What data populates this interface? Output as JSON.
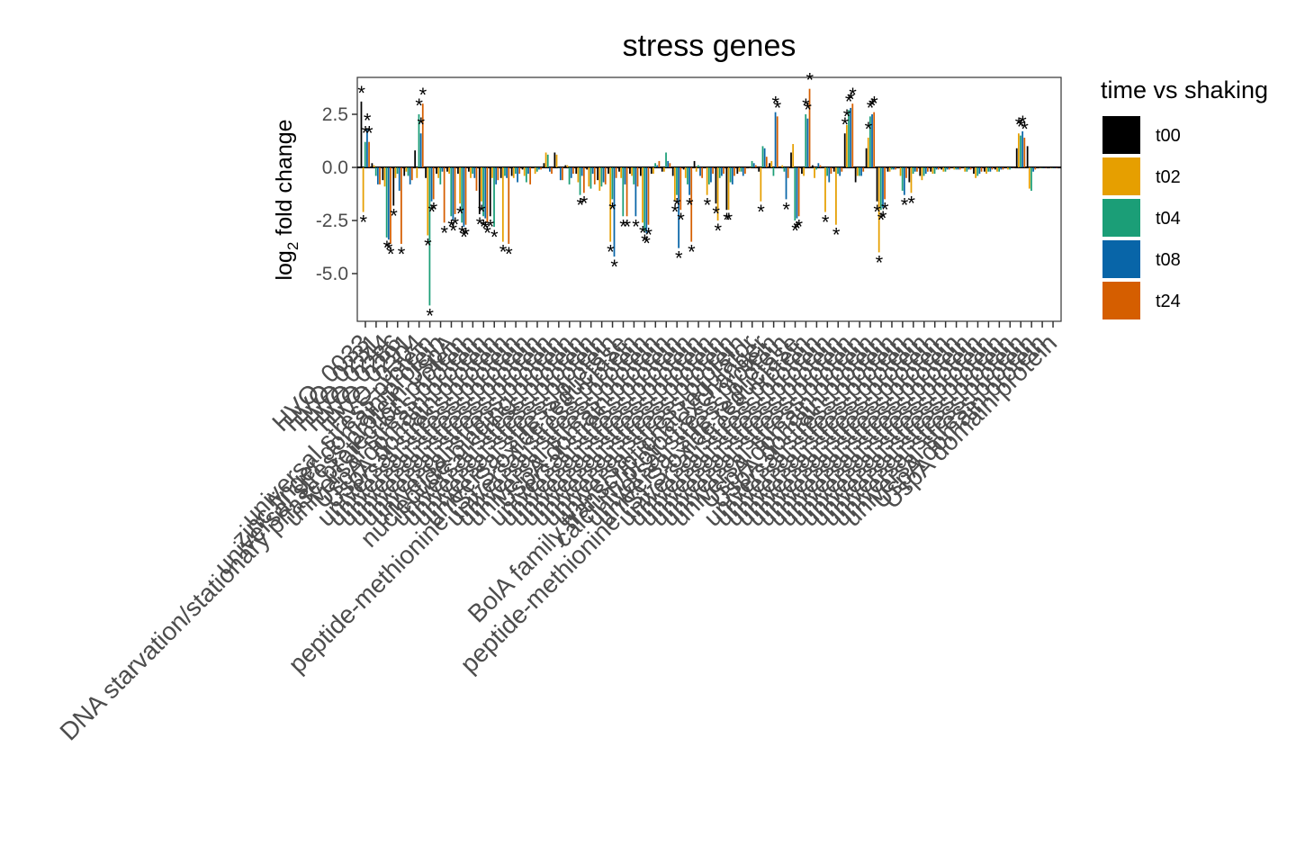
{
  "chart_data": {
    "type": "bar",
    "title": "stress genes",
    "ylabel": "log2 fold change",
    "ylim": [
      -7.3,
      4.3
    ],
    "yticks": [
      2.5,
      0.0,
      -2.5,
      -5.0
    ],
    "ytick_labels": [
      "2.5",
      "0.0",
      "-2.5",
      "-5.0"
    ],
    "legend_title": "time vs shaking",
    "legend_position": "right",
    "grid": false,
    "categories": [
      "HVO_0033",
      "HVO_0231",
      "HVO_0244",
      "HVO_0286",
      "HVO_0291",
      "HVO_0304",
      "universal stress protein",
      "zinc finger domain protein",
      "universal stress protein UspA",
      "DNA starvation/stationary phase protection protein",
      "universal stress protein",
      "UspA domain protein",
      "UspA domain protein",
      "universal stress protein",
      "universal stress protein",
      "universal stress protein",
      "universal stress protein",
      "universal stress protein",
      "universal stress protein",
      "nucleotide-binding protein",
      "universal stress protein",
      "universal stress protein",
      "universal stress protein",
      "universal stress protein",
      "peptide-methionine (S)-S-oxide reductase",
      "universal stress protein",
      "universal stress protein",
      "universal stress protein",
      "UspA domain protein",
      "universal stress protein",
      "universal stress protein",
      "universal stress protein",
      "universal stress protein",
      "universal stress protein",
      "universal stress protein",
      "universal stress protein",
      "BolA family transcriptional regulator",
      "calcium/proton exchanger",
      "universal stress protein",
      "universal stress protein",
      "peptide-methionine (S)-S-oxide reductase",
      "universal stress protein",
      "universal stress protein",
      "universal stress protein",
      "universal stress protein",
      "universal stress protein",
      "universal stress protein",
      "UspA domain protein",
      "UspA domain protein",
      "universal stress protein",
      "universal stress protein",
      "universal stress protein",
      "universal stress protein",
      "universal stress protein",
      "universal stress protein",
      "universal stress protein",
      "universal stress protein",
      "universal stress protein",
      "universal stress protein",
      "universal stress protein",
      "universal stress protein",
      "universal stress protein",
      "universal stress protein",
      "UspA domain protein",
      "UspA domain protein"
    ],
    "series": [
      {
        "name": "t00",
        "color": "#000000",
        "values": [
          3.1,
          0.2,
          -0.6,
          -1.8,
          -0.4,
          0.8,
          -0.5,
          -0.3,
          -0.2,
          -0.3,
          -0.2,
          -2.2,
          -2.3,
          -0.5,
          -0.4,
          -0.1,
          0.0,
          0.2,
          0.7,
          0.1,
          -0.3,
          -0.1,
          -0.6,
          -0.3,
          -0.2,
          -0.3,
          -0.4,
          -0.3,
          -0.2,
          -0.4,
          -0.1,
          0.3,
          0.0,
          -1.7,
          -2.0,
          -0.3,
          0.0,
          -0.2,
          0.2,
          0.0,
          0.7,
          -0.3,
          0.1,
          0.0,
          -0.2,
          1.6,
          -0.7,
          0.9,
          -1.6,
          -0.2,
          0.0,
          -0.7,
          -0.4,
          -0.2,
          -0.1,
          0.0,
          0.0,
          -0.3,
          -0.2,
          -0.1,
          0.0,
          0.9,
          1.0,
          0.0,
          0.0
        ]
      },
      {
        "name": "t02",
        "color": "#E69F00",
        "values": [
          -2.1,
          0.1,
          -0.9,
          -0.5,
          -0.2,
          -0.5,
          -3.2,
          -0.5,
          -0.3,
          -1.7,
          -0.5,
          -1.6,
          -0.5,
          -3.5,
          -0.5,
          -0.4,
          -0.3,
          0.7,
          0.6,
          0.1,
          -0.7,
          -0.9,
          -1.1,
          -3.5,
          -0.5,
          -0.4,
          -2.6,
          -0.3,
          -0.2,
          -1.6,
          -0.5,
          -0.2,
          -1.3,
          -2.5,
          -2.0,
          -0.2,
          0.0,
          -1.6,
          0.3,
          0.1,
          1.1,
          -0.4,
          -0.5,
          -2.1,
          -2.7,
          2.0,
          -0.4,
          1.4,
          -4.0,
          -0.2,
          -0.4,
          -1.2,
          -0.6,
          -0.3,
          -0.2,
          -0.1,
          -0.2,
          -0.5,
          -0.3,
          -0.2,
          -0.1,
          1.6,
          -1.0,
          0.0,
          0.0
        ]
      },
      {
        "name": "t04",
        "color": "#1B9E77",
        "values": [
          1.2,
          -0.4,
          -3.3,
          -0.3,
          -0.4,
          2.5,
          -6.5,
          -0.8,
          -2.3,
          -2.6,
          -0.3,
          -2.3,
          -2.8,
          -0.4,
          -0.3,
          -0.7,
          -0.2,
          0.6,
          0.0,
          -0.8,
          -1.3,
          -1.0,
          -0.9,
          -1.5,
          -2.3,
          -0.8,
          -3.0,
          0.2,
          0.7,
          -1.3,
          -0.8,
          0.1,
          -0.8,
          -0.5,
          -0.7,
          -0.2,
          0.3,
          1.0,
          -0.4,
          -0.2,
          -2.5,
          2.5,
          -0.1,
          -0.4,
          -0.3,
          2.7,
          -0.4,
          2.4,
          -2.0,
          -0.1,
          -1.1,
          -0.3,
          -0.4,
          -0.3,
          -0.2,
          -0.1,
          -0.2,
          -0.4,
          -0.2,
          -0.2,
          -0.1,
          1.5,
          -1.1,
          0.0,
          0.0
        ]
      },
      {
        "name": "t08",
        "color": "#0865A8",
        "values": [
          1.8,
          -0.8,
          -3.4,
          -1.1,
          -0.8,
          1.6,
          -1.6,
          -0.2,
          -2.5,
          -2.8,
          -0.5,
          -2.4,
          -0.8,
          -0.5,
          -0.7,
          -0.3,
          -0.1,
          -0.2,
          -0.6,
          -0.5,
          -0.4,
          -0.3,
          -0.7,
          -4.2,
          -0.8,
          -2.3,
          -3.1,
          0.1,
          0.3,
          -3.8,
          -1.3,
          -0.4,
          -0.7,
          -0.4,
          -0.8,
          -0.4,
          0.2,
          0.9,
          2.6,
          -1.5,
          -2.4,
          2.3,
          0.2,
          -0.7,
          -0.4,
          2.8,
          -0.4,
          2.5,
          -1.9,
          -0.1,
          -1.3,
          -0.2,
          -0.3,
          -0.1,
          -0.1,
          -0.1,
          -0.1,
          -0.3,
          -0.2,
          -0.1,
          0.0,
          1.7,
          -0.2,
          0.0,
          0.0
        ]
      },
      {
        "name": "t24",
        "color": "#D55E00",
        "values": [
          1.2,
          -0.8,
          -3.6,
          -3.6,
          -0.6,
          3.0,
          -1.5,
          -2.6,
          -2.2,
          -2.7,
          -1.1,
          -2.6,
          -0.6,
          -3.6,
          -0.3,
          -0.8,
          -0.1,
          -0.3,
          -0.6,
          -0.3,
          -1.2,
          -0.8,
          -0.8,
          -0.5,
          -2.3,
          -0.9,
          -2.7,
          0.3,
          0.2,
          -2.0,
          -3.5,
          -0.5,
          -0.3,
          -0.3,
          -0.4,
          -0.3,
          0.1,
          0.5,
          2.4,
          -0.5,
          -2.3,
          3.7,
          0.1,
          -0.3,
          -0.2,
          3.0,
          -0.2,
          2.6,
          -1.5,
          -0.1,
          -0.5,
          -0.2,
          -0.2,
          -0.1,
          -0.1,
          -0.1,
          -0.1,
          -0.2,
          -0.1,
          -0.1,
          0.0,
          1.4,
          -0.1,
          0.0,
          0.0
        ]
      }
    ],
    "significance_marker": "*"
  }
}
